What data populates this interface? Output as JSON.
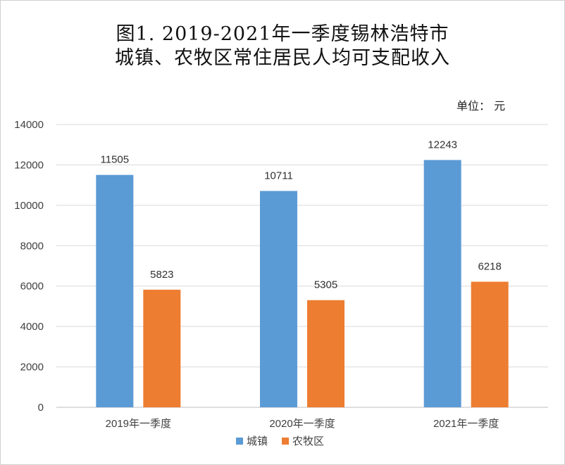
{
  "chart_data": {
    "type": "bar",
    "title_line1": "图1.   2019-2021年一季度锡林浩特市",
    "title_line2": "城镇、农牧区常住居民人均可支配收入",
    "unit_label": "单位： 元",
    "categories": [
      "2019年一季度",
      "2020年一季度",
      "2021年一季度"
    ],
    "series": [
      {
        "name": "城镇",
        "color": "#5b9bd5",
        "values": [
          11505,
          10711,
          12243
        ]
      },
      {
        "name": "农牧区",
        "color": "#ed7d31",
        "values": [
          5823,
          5305,
          6218
        ]
      }
    ],
    "ylim": [
      0,
      14000
    ],
    "yticks": [
      "0",
      "2000",
      "4000",
      "6000",
      "8000",
      "10000",
      "12000",
      "14000"
    ],
    "grid": true,
    "legend_position": "bottom"
  }
}
